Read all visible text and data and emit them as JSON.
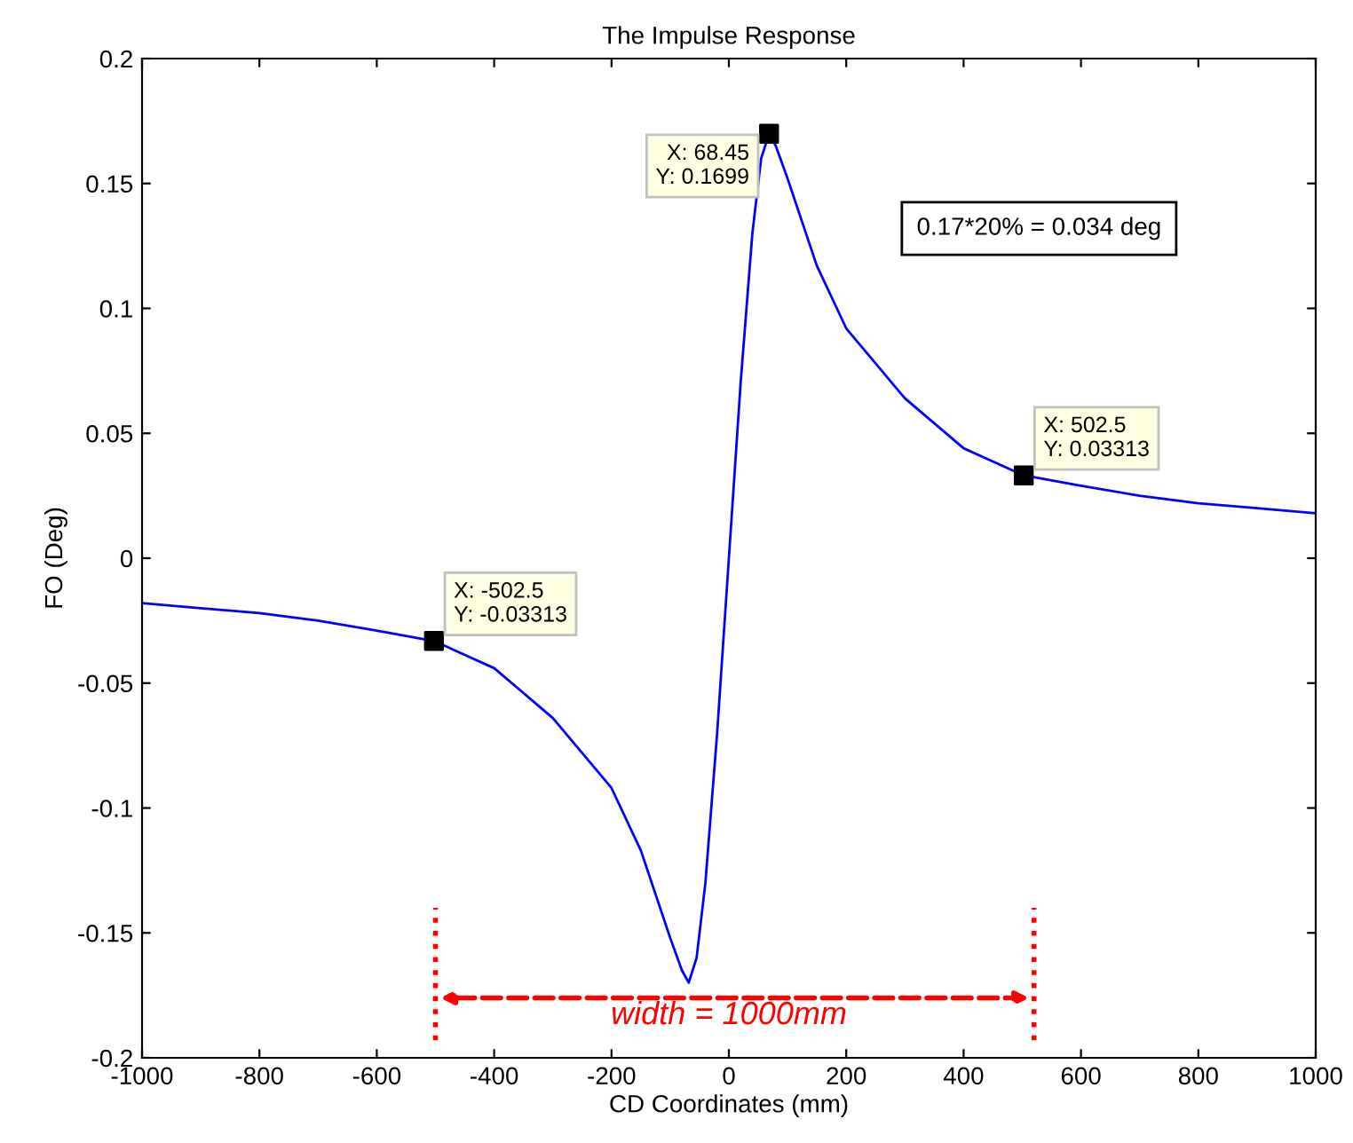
{
  "chart_data": {
    "type": "line",
    "title": "The Impulse Response",
    "xlabel": "CD Coordinates (mm)",
    "ylabel": "FO (Deg)",
    "xlim": [
      -1000,
      1000
    ],
    "ylim": [
      -0.2,
      0.2
    ],
    "xticks": [
      -1000,
      -800,
      -600,
      -400,
      -200,
      0,
      200,
      400,
      600,
      800,
      1000
    ],
    "yticks": [
      -0.2,
      -0.15,
      -0.1,
      -0.05,
      0,
      0.05,
      0.1,
      0.15,
      0.2
    ],
    "grid": false,
    "legend": false,
    "series": [
      {
        "color": "#0000ff",
        "marker": "none",
        "line_style": "solid",
        "x": [
          -1000,
          -900,
          -800,
          -700,
          -600,
          -502.5,
          -400,
          -300,
          -200,
          -150,
          -100,
          -80,
          -68.45,
          -55,
          -40,
          -20,
          0,
          20,
          40,
          55,
          68.45,
          80,
          100,
          150,
          200,
          300,
          400,
          502.5,
          600,
          700,
          800,
          900,
          1000
        ],
        "values": [
          -0.018,
          -0.02,
          -0.022,
          -0.025,
          -0.029,
          -0.03313,
          -0.044,
          -0.064,
          -0.092,
          -0.117,
          -0.152,
          -0.165,
          -0.1699,
          -0.16,
          -0.13,
          -0.07,
          0,
          0.07,
          0.13,
          0.16,
          0.1699,
          0.165,
          0.152,
          0.117,
          0.092,
          0.064,
          0.044,
          0.03313,
          0.029,
          0.025,
          0.022,
          0.02,
          0.018
        ]
      },
      {
        "type": "scatter",
        "color": "#000000",
        "marker": "square",
        "x": [
          -502.5,
          68.45,
          502.5
        ],
        "values": [
          -0.03313,
          0.1699,
          0.03313
        ]
      }
    ],
    "annotations": [
      {
        "text": "X: -502.5\nY: -0.03313",
        "x": -502.5,
        "y": -0.03313
      },
      {
        "text": "X: 68.45\nY: 0.1699",
        "x": 68.45,
        "y": 0.1699
      },
      {
        "text": "X: 502.5\nY: 0.03313",
        "x": 502.5,
        "y": 0.03313
      },
      "0.17*20% = 0.034 deg",
      "width = 1000mm"
    ]
  }
}
